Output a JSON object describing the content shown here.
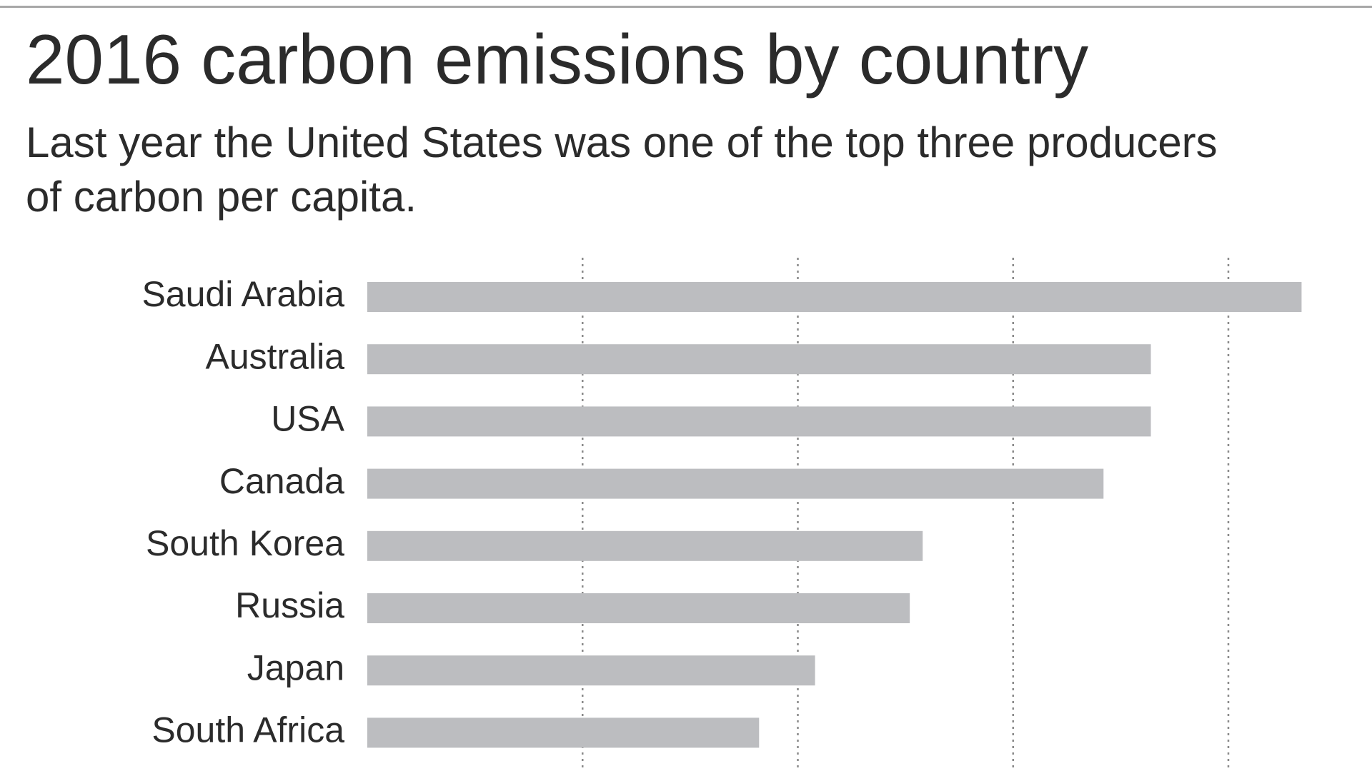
{
  "chart_data": {
    "type": "hbar",
    "title": "2016 carbon emissions by country",
    "subtitle": "Last year the United States was one of the top three producers of carbon per capita.",
    "categories": [
      "Saudi Arabia",
      "Australia",
      "USA",
      "Canada",
      "South Korea",
      "Russia",
      "Japan",
      "South Africa"
    ],
    "values": [
      21.7,
      18.2,
      18.2,
      17.1,
      12.9,
      12.6,
      10.4,
      9.1
    ],
    "color": "#bcbdc0",
    "xlim": [
      0,
      22
    ],
    "xticks": [
      5,
      10,
      15,
      20
    ],
    "grid": true
  }
}
